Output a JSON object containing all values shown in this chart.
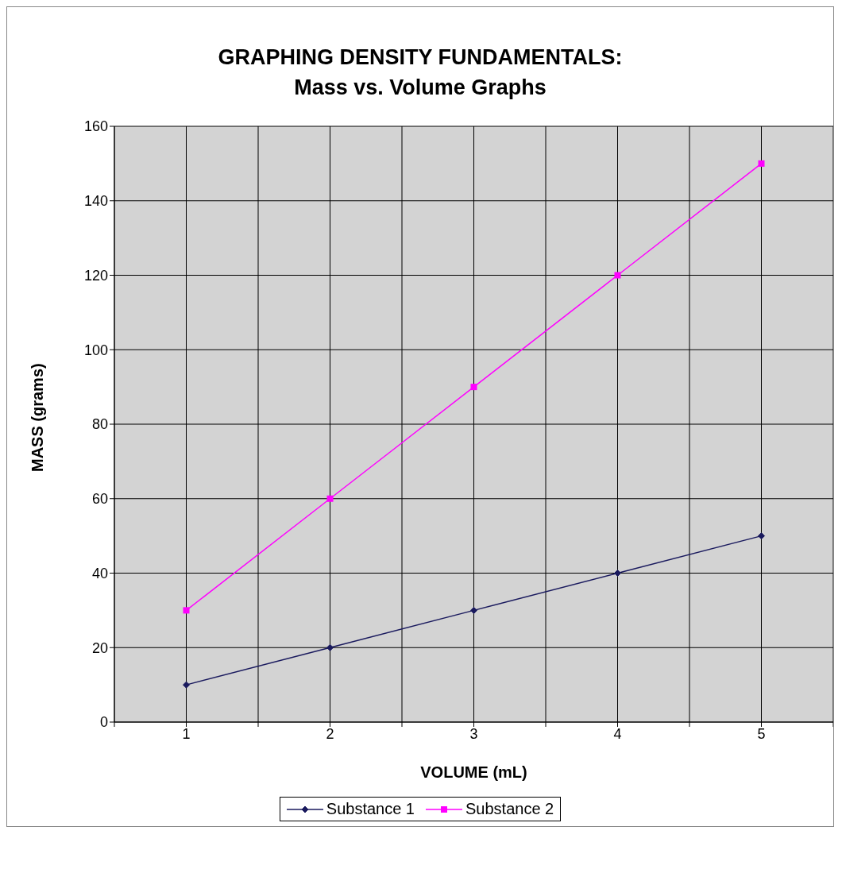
{
  "chart_data": {
    "type": "line",
    "title": "GRAPHING DENSITY FUNDAMENTALS:",
    "subtitle": "Mass vs. Volume Graphs",
    "xlabel": "VOLUME (mL)",
    "ylabel": "MASS (grams)",
    "x": [
      1,
      2,
      3,
      4,
      5
    ],
    "series": [
      {
        "name": "Substance 1",
        "color": "#1a1a5e",
        "marker": "diamond",
        "values": [
          10,
          20,
          30,
          40,
          50
        ]
      },
      {
        "name": "Substance 2",
        "color": "#ff00ff",
        "marker": "square",
        "values": [
          30,
          60,
          90,
          120,
          150
        ]
      }
    ],
    "xlim": [
      0.5,
      5.5
    ],
    "xticks": [
      {
        "value": 0.5,
        "label": null
      },
      1,
      {
        "value": 1.5,
        "label": null
      },
      2,
      {
        "value": 2.5,
        "label": null
      },
      3,
      {
        "value": 3.5,
        "label": null
      },
      4,
      {
        "value": 4.5,
        "label": null
      },
      5,
      {
        "value": 5.5,
        "label": null
      }
    ],
    "ylim": [
      0,
      160
    ],
    "yticks": [
      0,
      20,
      40,
      60,
      80,
      100,
      120,
      140,
      160
    ],
    "grid": true,
    "legend": "bottom",
    "line_style": "solid"
  }
}
